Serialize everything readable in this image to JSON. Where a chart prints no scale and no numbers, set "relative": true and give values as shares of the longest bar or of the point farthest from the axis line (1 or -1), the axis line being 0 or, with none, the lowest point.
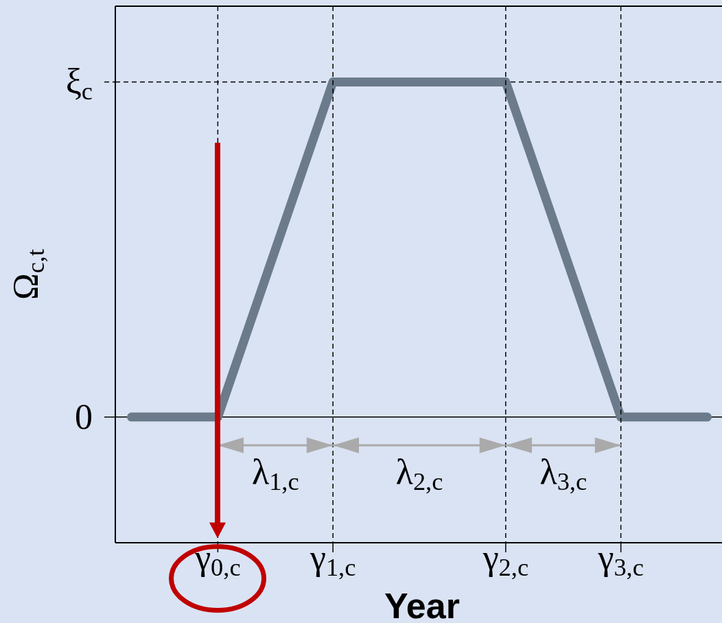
{
  "chart_data": {
    "type": "line",
    "xlabel": "Year",
    "ylabel": "Ω$_{c,t}$",
    "categories": [
      null,
      null,
      null,
      "γ$_{0,c}$",
      null,
      null,
      null,
      "γ$_{1,c}$",
      null,
      null,
      null,
      null,
      null,
      "γ$_{2,c}$",
      null,
      null,
      null,
      "γ$_{3,c}$",
      null,
      null,
      null
    ],
    "values": [
      0,
      0,
      0,
      0,
      0.25,
      0.5,
      0.75,
      1,
      1,
      1,
      1,
      1,
      1,
      1,
      0.75,
      0.5,
      0.25,
      0,
      0,
      0,
      0
    ],
    "color": "#6b7b8b",
    "relative": true,
    "grid": "x",
    "ref_lines": [
      {
        "axis": "y",
        "value": 0,
        "label": "0"
      },
      {
        "axis": "y",
        "value": 1,
        "label": "ξ$_{c}$",
        "line_style": "dashed"
      }
    ],
    "annotations": [
      "λ$_{1,c}$",
      "λ$_{2,c}$",
      "λ$_{3,c}$"
    ]
  }
}
